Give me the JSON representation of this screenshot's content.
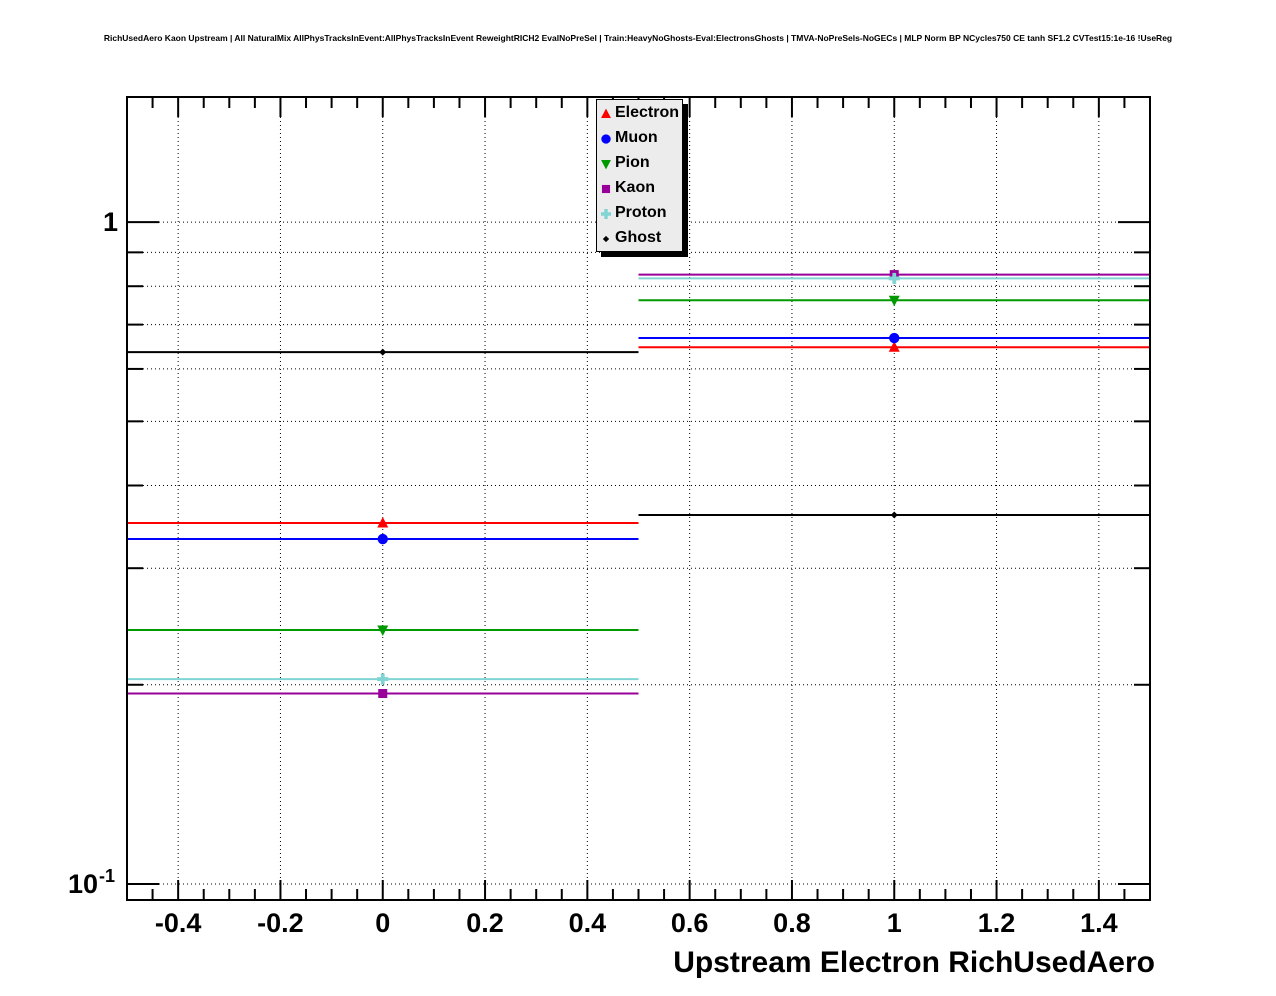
{
  "title": "RichUsedAero Kaon Upstream | All NaturalMix AllPhysTracksInEvent:AllPhysTracksInEvent ReweightRICH2 EvalNoPreSel | Train:HeavyNoGhosts-Eval:ElectronsGhosts | TMVA-NoPreSels-NoGECs | MLP Norm BP NCycles750 CE tanh SF1.2 CVTest15:1e-16 !UseReg",
  "legend": {
    "entries": [
      {
        "label": "Electron",
        "marker": "triangle-up",
        "color": "#ff0000"
      },
      {
        "label": "Muon",
        "marker": "circle",
        "color": "#0000ff"
      },
      {
        "label": "Pion",
        "marker": "triangle-down",
        "color": "#009900"
      },
      {
        "label": "Kaon",
        "marker": "square",
        "color": "#990099"
      },
      {
        "label": "Proton",
        "marker": "cross",
        "color": "#80d4d4"
      },
      {
        "label": "Ghost",
        "marker": "dot",
        "color": "#000000"
      }
    ]
  },
  "chart_data": {
    "type": "line",
    "x": [
      0,
      1
    ],
    "bin_edges": [
      -0.5,
      0.5,
      1.5
    ],
    "series": [
      {
        "name": "Electron",
        "values": [
          0.351,
          0.647
        ],
        "color": "#ff0000",
        "marker": "triangle-up"
      },
      {
        "name": "Muon",
        "values": [
          0.332,
          0.668
        ],
        "color": "#0000ff",
        "marker": "circle"
      },
      {
        "name": "Pion",
        "values": [
          0.242,
          0.762
        ],
        "color": "#009900",
        "marker": "triangle-down"
      },
      {
        "name": "Kaon",
        "values": [
          0.194,
          0.833
        ],
        "color": "#990099",
        "marker": "square"
      },
      {
        "name": "Proton",
        "values": [
          0.204,
          0.822
        ],
        "color": "#80d4d4",
        "marker": "cross"
      },
      {
        "name": "Ghost",
        "values": [
          0.636,
          0.361
        ],
        "color": "#000000",
        "marker": "dot"
      }
    ],
    "xlabel": "Upstream Electron RichUsedAero",
    "ylabel": "",
    "xlim": [
      -0.5,
      1.5
    ],
    "ylim": [
      0.0946,
      1.545
    ],
    "ylog": true,
    "x_tick_values": [
      -0.4,
      -0.2,
      0,
      0.2,
      0.4,
      0.6,
      0.8,
      1.0,
      1.2,
      1.4
    ],
    "x_tick_labels": [
      "-0.4",
      "-0.2",
      "0",
      "0.2",
      "0.4",
      "0.6",
      "0.8",
      "1",
      "1.2",
      "1.4"
    ],
    "x_minor_step": 0.05,
    "y_ticks": [
      {
        "value": 1.0,
        "mantissa": "1",
        "exponent": ""
      },
      {
        "value": 0.1,
        "mantissa": "10",
        "exponent": "-1"
      }
    ],
    "y_minor_ticks": [
      0.9,
      0.8,
      0.7,
      0.6,
      0.5,
      0.4,
      0.3,
      0.2
    ],
    "y_grid_values": [
      1.0,
      0.9,
      0.8,
      0.7,
      0.6,
      0.5,
      0.4,
      0.3,
      0.2,
      0.1
    ],
    "grid": "dotted",
    "legend_position": "top-center"
  }
}
